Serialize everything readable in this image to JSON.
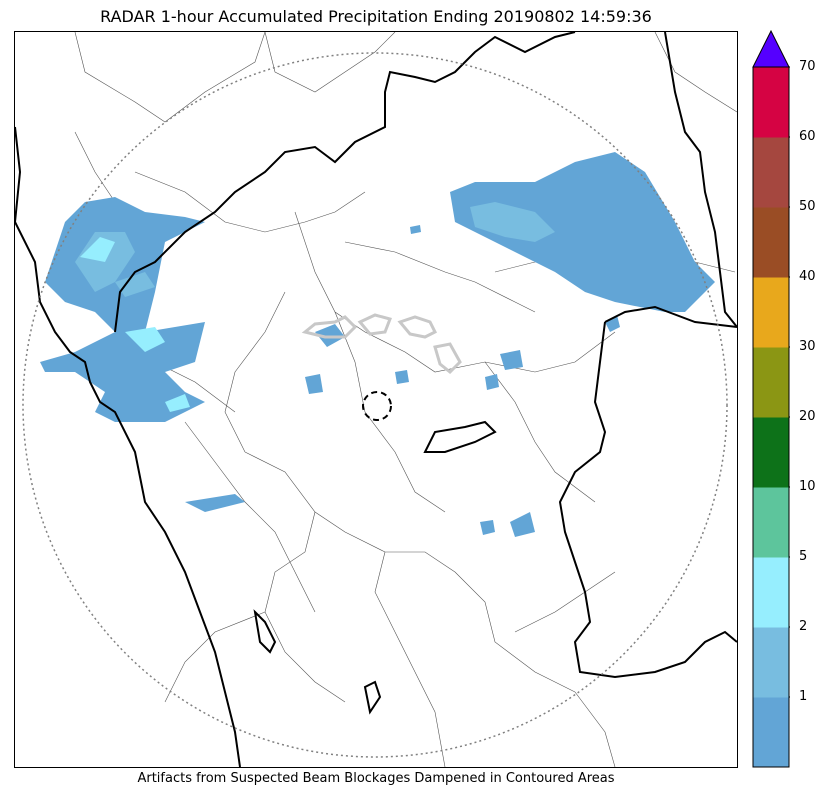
{
  "title": "RADAR 1-hour Accumulated Precipitation Ending 20190802 14:59:36",
  "caption": "Artifacts from Suspected Beam Blockages Dampened in Contoured Areas",
  "colorbar": {
    "extend": "max",
    "extend_color": "#5500ff",
    "bins": [
      {
        "color": "#62a5d6"
      },
      {
        "color": "#78bde0"
      },
      {
        "color": "#96eefe"
      },
      {
        "color": "#5dc59c"
      },
      {
        "color": "#0d7219"
      },
      {
        "color": "#8b9614"
      },
      {
        "color": "#e8a81c"
      },
      {
        "color": "#9a4d25"
      },
      {
        "color": "#a5473f"
      },
      {
        "color": "#d50343"
      }
    ],
    "ticks": [
      {
        "label": "1",
        "bin_edge": 1
      },
      {
        "label": "2",
        "bin_edge": 2
      },
      {
        "label": "5",
        "bin_edge": 3
      },
      {
        "label": "10",
        "bin_edge": 4
      },
      {
        "label": "20",
        "bin_edge": 5
      },
      {
        "label": "30",
        "bin_edge": 6
      },
      {
        "label": "40",
        "bin_edge": 7
      },
      {
        "label": "50",
        "bin_edge": 8
      },
      {
        "label": "60",
        "bin_edge": 9
      },
      {
        "label": "70",
        "bin_edge": 10
      }
    ]
  },
  "colors": {
    "range_ring": "#808080",
    "blockage_contour": "#c8c8c8",
    "state_border": "#000000",
    "district_border": "#555555"
  }
}
